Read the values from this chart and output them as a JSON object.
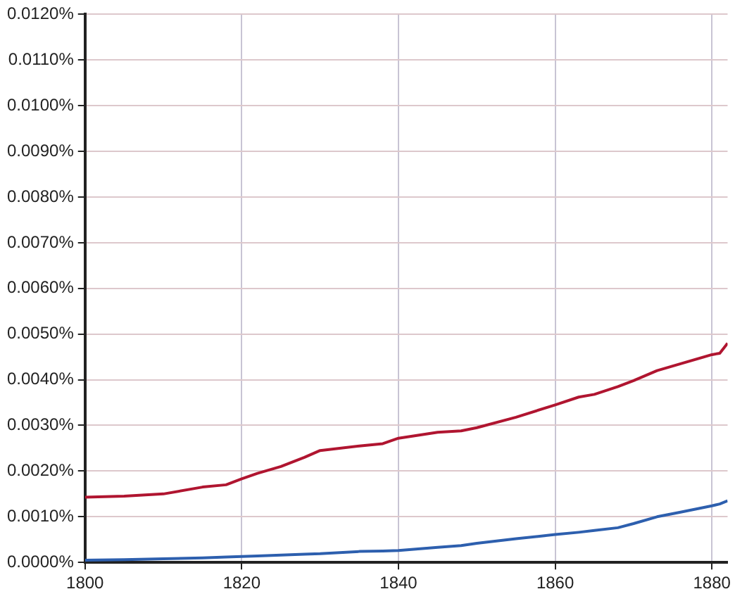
{
  "chart_data": {
    "type": "line",
    "x": [
      1800,
      1805,
      1810,
      1815,
      1818,
      1820,
      1822,
      1825,
      1828,
      1830,
      1835,
      1838,
      1840,
      1845,
      1848,
      1850,
      1855,
      1860,
      1863,
      1865,
      1868,
      1870,
      1873,
      1876,
      1880,
      1881,
      1882
    ],
    "series": [
      {
        "color": "#b01530",
        "values": [
          0.00143,
          0.00145,
          0.0015,
          0.00165,
          0.0017,
          0.00183,
          0.00195,
          0.0021,
          0.0023,
          0.00245,
          0.00255,
          0.0026,
          0.00272,
          0.00285,
          0.00288,
          0.00295,
          0.00318,
          0.00345,
          0.00362,
          0.00368,
          0.00385,
          0.00398,
          0.0042,
          0.00435,
          0.00455,
          0.00458,
          0.0048
        ]
      },
      {
        "color": "#2d5fae",
        "values": [
          5e-05,
          6e-05,
          8e-05,
          0.0001,
          0.00012,
          0.00013,
          0.00014,
          0.00016,
          0.00018,
          0.00019,
          0.00024,
          0.00025,
          0.00026,
          0.00033,
          0.00037,
          0.00042,
          0.00052,
          0.00061,
          0.00066,
          0.0007,
          0.00076,
          0.00085,
          0.001,
          0.0011,
          0.00124,
          0.00128,
          0.00135
        ]
      }
    ],
    "xlim": [
      1800,
      1882
    ],
    "xticks": [
      1800,
      1820,
      1840,
      1860,
      1880
    ],
    "ylim": [
      0,
      0.012
    ],
    "yticks": [
      {
        "value": 0,
        "label": "0.0000%"
      },
      {
        "value": 0.001,
        "label": "0.0010%"
      },
      {
        "value": 0.002,
        "label": "0.0020%"
      },
      {
        "value": 0.003,
        "label": "0.0030%"
      },
      {
        "value": 0.004,
        "label": "0.0040%"
      },
      {
        "value": 0.005,
        "label": "0.0050%"
      },
      {
        "value": 0.006,
        "label": "0.0060%"
      },
      {
        "value": 0.007,
        "label": "0.0070%"
      },
      {
        "value": 0.008,
        "label": "0.0080%"
      },
      {
        "value": 0.009,
        "label": "0.0090%"
      },
      {
        "value": 0.01,
        "label": "0.0100%"
      },
      {
        "value": 0.011,
        "label": "0.0110%"
      },
      {
        "value": 0.012,
        "label": "0.0120%"
      }
    ],
    "grid": true,
    "legend": false,
    "marker": "none",
    "line_style": "solid"
  }
}
